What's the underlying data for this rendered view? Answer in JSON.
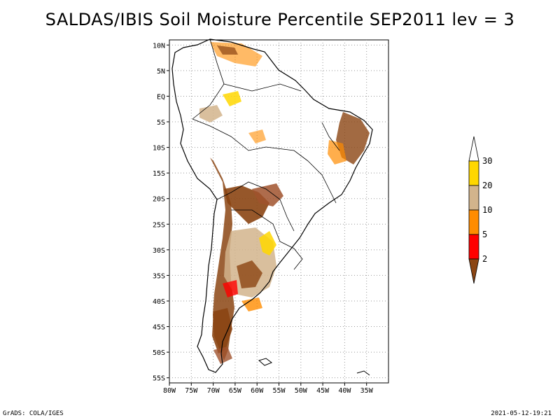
{
  "title": "SALDAS/IBIS Soil Moisture Percentile SEP2011 lev = 3",
  "map": {
    "lon_range": [
      -80,
      -30
    ],
    "lat_range": [
      -56,
      11
    ],
    "lon_ticks": [
      "80W",
      "75W",
      "70W",
      "65W",
      "60W",
      "55W",
      "50W",
      "45W",
      "40W",
      "35W"
    ],
    "lat_ticks": [
      "10N",
      "5N",
      "EQ",
      "5S",
      "10S",
      "15S",
      "20S",
      "25S",
      "30S",
      "35S",
      "40S",
      "45S",
      "50S",
      "55S"
    ],
    "grid": true
  },
  "legend": {
    "labels": [
      "2",
      "5",
      "10",
      "20",
      "30"
    ],
    "colors": {
      "below_2": "#8b4513",
      "2_to_5": "#ff0000",
      "5_to_10": "#ff8c00",
      "10_to_20": "#d2b48c",
      "20_to_30": "#ffd700",
      "above_30": "#ffffff"
    }
  },
  "footer": {
    "left": "GrADS: COLA/IGES",
    "right": "2021-05-12-19:21"
  }
}
